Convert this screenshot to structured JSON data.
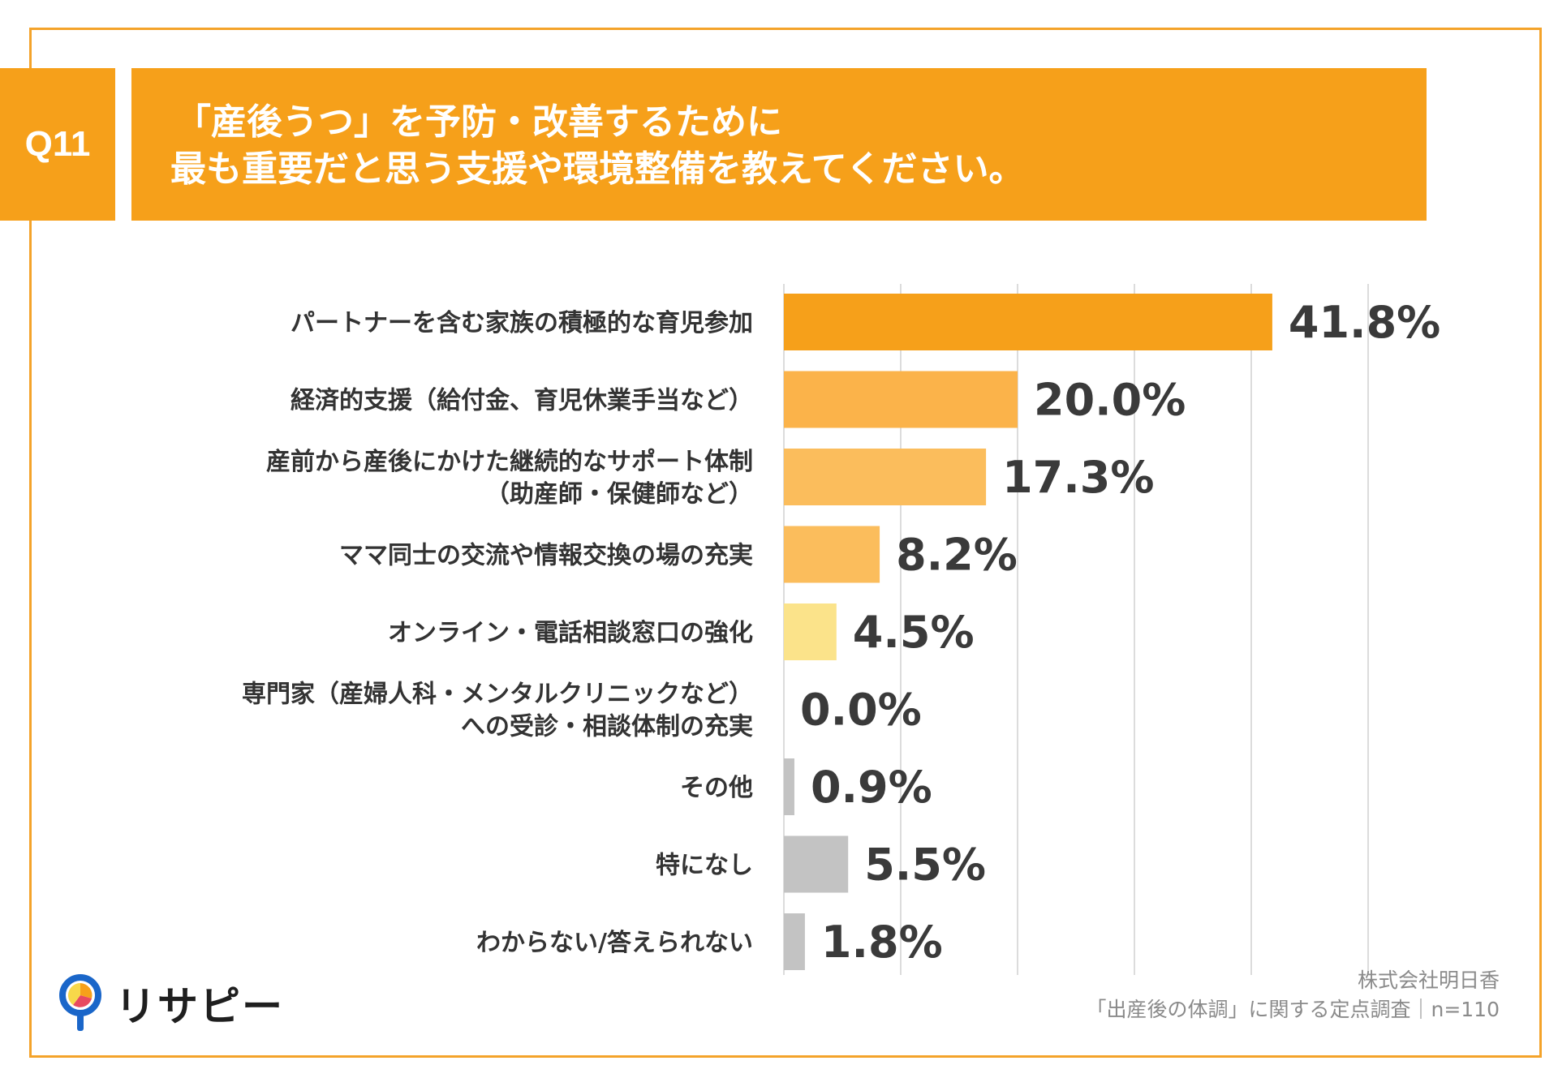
{
  "question": {
    "badge": "Q11",
    "line1": "「産後うつ」を予防・改善するために",
    "line2": "最も重要だと思う支援や環境整備を教えてください。"
  },
  "chart_data": {
    "type": "bar",
    "orientation": "horizontal",
    "categories": [
      [
        "パートナーを含む家族の積極的な育児参加"
      ],
      [
        "経済的支援（給付金、育児休業手当など）"
      ],
      [
        "産前から産後にかけた継続的なサポート体制",
        "（助産師・保健師など）"
      ],
      [
        "ママ同士の交流や情報交換の場の充実"
      ],
      [
        "オンライン・電話相談窓口の強化"
      ],
      [
        "専門家（産婦人科・メンタルクリニックなど）",
        "への受診・相談体制の充実"
      ],
      [
        "その他"
      ],
      [
        "特になし"
      ],
      [
        "わからない/答えられない"
      ]
    ],
    "values": [
      41.8,
      20.0,
      17.3,
      8.2,
      4.5,
      0.0,
      0.9,
      5.5,
      1.8
    ],
    "value_labels": [
      "41.8%",
      "20.0%",
      "17.3%",
      "8.2%",
      "4.5%",
      "0.0%",
      "0.9%",
      "5.5%",
      "1.8%"
    ],
    "colors": [
      "#f6a01a",
      "#fbb34a",
      "#fbbd5c",
      "#fbbd5c",
      "#fbe38a",
      "#fbe38a",
      "#c3c3c3",
      "#c3c3c3",
      "#c3c3c3"
    ],
    "xlim": [
      0,
      50
    ],
    "grid": true,
    "legend": "none"
  },
  "source": {
    "company": "株式会社明日香",
    "survey": "「出産後の体調」に関する定点調査｜n=110"
  },
  "logo": {
    "text": "リサピー",
    "icon": "magnifier-pin-icon",
    "icon_colors": [
      "#1a66c9",
      "#f6a01a",
      "#e84a5f",
      "#f7d84a"
    ]
  }
}
